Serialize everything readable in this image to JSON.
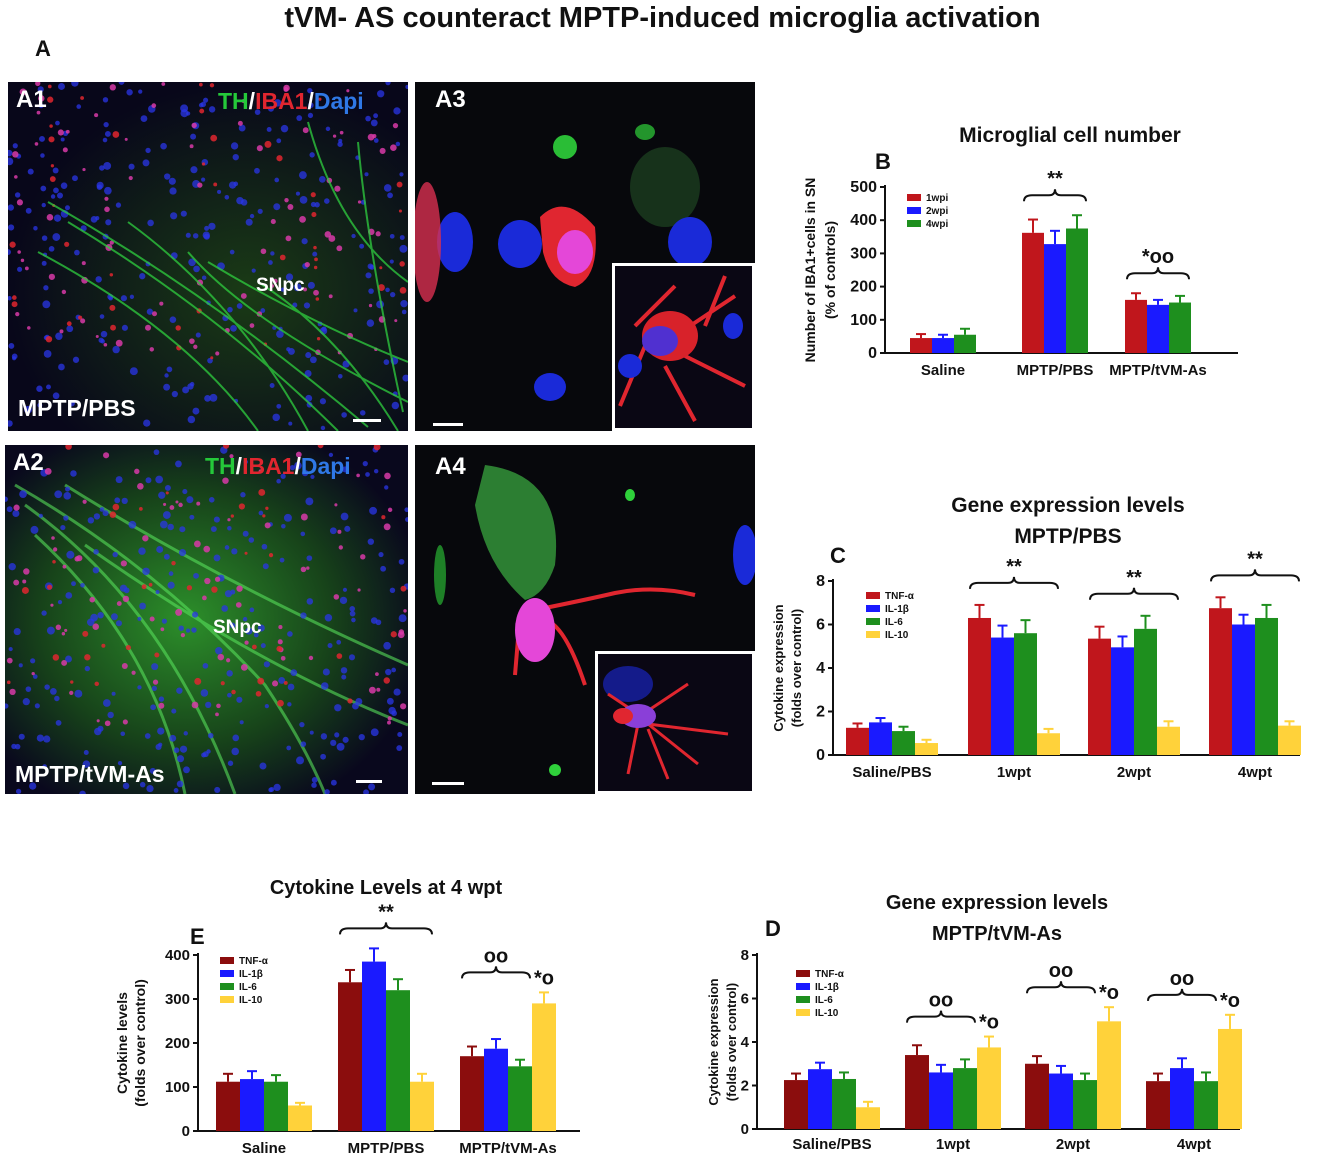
{
  "figure": {
    "title": "tVM- AS counteract  MPTP-induced microglia activation",
    "panel_a_letter": "A"
  },
  "micrographs": {
    "a1": {
      "label": "A1",
      "condition": "MPTP/PBS",
      "region": "SNpc",
      "stain": {
        "th": "TH",
        "iba1": "IBA1",
        "dapi": "Dapi"
      }
    },
    "a2": {
      "label": "A2",
      "condition": "MPTP/tVM-As",
      "region": "SNpc",
      "stain": {
        "th": "TH",
        "iba1": "IBA1",
        "dapi": "Dapi"
      }
    },
    "a3": {
      "label": "A3"
    },
    "a4": {
      "label": "A4"
    }
  },
  "colors": {
    "red": "#c0161c",
    "blue": "#1a1aff",
    "green": "#1e8f1e",
    "yellow": "#ffd23a",
    "darkred": "#8b0d0d"
  },
  "chart_data": [
    {
      "id": "B",
      "panel_letter": "B",
      "type": "bar",
      "title": "Microglial cell number",
      "ylabel": "Number of IBA1+cells in SN\n(% of controls)",
      "ylim": [
        0,
        500
      ],
      "yticks": [
        0,
        100,
        200,
        300,
        400,
        500
      ],
      "categories": [
        "Saline",
        "MPTP/PBS",
        "MPTP/tVM-As"
      ],
      "series": [
        {
          "name": "1wpi",
          "color": "#c0161c",
          "values": [
            45,
            362,
            160
          ],
          "errors": [
            12,
            40,
            20
          ]
        },
        {
          "name": "2wpi",
          "color": "#1a1aff",
          "values": [
            45,
            328,
            145
          ],
          "errors": [
            10,
            40,
            15
          ]
        },
        {
          "name": "4wpi",
          "color": "#1e8f1e",
          "values": [
            55,
            375,
            152
          ],
          "errors": [
            18,
            40,
            20
          ]
        }
      ],
      "annotations": [
        {
          "category": 1,
          "text": "**"
        },
        {
          "category": 2,
          "text": "*oo"
        }
      ],
      "legend": "top-left"
    },
    {
      "id": "C",
      "panel_letter": "C",
      "type": "bar",
      "title": "Gene expression levels\nMPTP/PBS",
      "ylabel": "Cytokine expression\n(folds over control)",
      "ylim": [
        0,
        8
      ],
      "yticks": [
        0,
        2,
        4,
        6,
        8
      ],
      "categories": [
        "Saline/PBS",
        "1wpt",
        "2wpt",
        "4wpt"
      ],
      "series": [
        {
          "name": "TNF-α",
          "color": "#c0161c",
          "values": [
            1.25,
            6.3,
            5.35,
            6.75
          ],
          "errors": [
            0.2,
            0.6,
            0.55,
            0.5
          ]
        },
        {
          "name": "IL-1β",
          "color": "#1a1aff",
          "values": [
            1.5,
            5.4,
            4.95,
            6.0
          ],
          "errors": [
            0.2,
            0.55,
            0.5,
            0.45
          ]
        },
        {
          "name": "IL-6",
          "color": "#1e8f1e",
          "values": [
            1.1,
            5.6,
            5.8,
            6.3
          ],
          "errors": [
            0.2,
            0.6,
            0.6,
            0.6
          ]
        },
        {
          "name": "IL-10",
          "color": "#ffd23a",
          "values": [
            0.55,
            1.0,
            1.3,
            1.35
          ],
          "errors": [
            0.15,
            0.2,
            0.25,
            0.2
          ]
        }
      ],
      "annotations": [
        {
          "category": 1,
          "text": "**"
        },
        {
          "category": 2,
          "text": "**"
        },
        {
          "category": 3,
          "text": "**"
        }
      ],
      "legend": "top-left"
    },
    {
      "id": "E",
      "panel_letter": "E",
      "type": "bar",
      "title": "Cytokine Levels  at 4 wpt",
      "ylabel": "Cytokine levels\n(folds over control)",
      "ylim": [
        0,
        400
      ],
      "yticks": [
        0,
        100,
        200,
        300,
        400
      ],
      "categories": [
        "Saline",
        "MPTP/PBS",
        "MPTP/tVM-As"
      ],
      "series": [
        {
          "name": "TNF-α",
          "color": "#8b0d0d",
          "values": [
            112,
            338,
            170
          ],
          "errors": [
            18,
            28,
            22
          ]
        },
        {
          "name": "IL-1β",
          "color": "#1a1aff",
          "values": [
            118,
            385,
            187
          ],
          "errors": [
            18,
            30,
            22
          ]
        },
        {
          "name": "IL-6",
          "color": "#1e8f1e",
          "values": [
            112,
            320,
            147
          ],
          "errors": [
            15,
            25,
            15
          ]
        },
        {
          "name": "IL-10",
          "color": "#ffd23a",
          "values": [
            58,
            112,
            290
          ],
          "errors": [
            6,
            18,
            25
          ]
        }
      ],
      "annotations": [
        {
          "category": 1,
          "text": "**"
        },
        {
          "category": 2,
          "text": "oo",
          "side": "left"
        },
        {
          "category": 2,
          "text": "*o",
          "series": 3
        }
      ],
      "legend": "top-left"
    },
    {
      "id": "D",
      "panel_letter": "D",
      "type": "bar",
      "title": "Gene expression levels\nMPTP/tVM-As",
      "ylabel": "Cytokine expression\n(folds over control)",
      "ylim": [
        0,
        8
      ],
      "yticks": [
        0,
        2,
        4,
        6,
        8
      ],
      "categories": [
        "Saline/PBS",
        "1wpt",
        "2wpt",
        "4wpt"
      ],
      "series": [
        {
          "name": "TNF-α",
          "color": "#8b0d0d",
          "values": [
            2.25,
            3.4,
            3.0,
            2.2
          ],
          "errors": [
            0.3,
            0.45,
            0.35,
            0.35
          ]
        },
        {
          "name": "IL-1β",
          "color": "#1a1aff",
          "values": [
            2.75,
            2.6,
            2.55,
            2.8
          ],
          "errors": [
            0.3,
            0.35,
            0.35,
            0.45
          ]
        },
        {
          "name": "IL-6",
          "color": "#1e8f1e",
          "values": [
            2.3,
            2.8,
            2.25,
            2.2
          ],
          "errors": [
            0.3,
            0.4,
            0.3,
            0.4
          ]
        },
        {
          "name": "IL-10",
          "color": "#ffd23a",
          "values": [
            1.0,
            3.75,
            4.95,
            4.6
          ],
          "errors": [
            0.25,
            0.5,
            0.65,
            0.65
          ]
        }
      ],
      "annotations": [
        {
          "category": 1,
          "text": "oo",
          "side": "left"
        },
        {
          "category": 1,
          "text": "*o",
          "series": 3
        },
        {
          "category": 2,
          "text": "oo",
          "side": "left"
        },
        {
          "category": 2,
          "text": "*o",
          "series": 3
        },
        {
          "category": 3,
          "text": "oo",
          "side": "left"
        },
        {
          "category": 3,
          "text": "*o",
          "series": 3
        }
      ],
      "legend": "top-left"
    }
  ]
}
